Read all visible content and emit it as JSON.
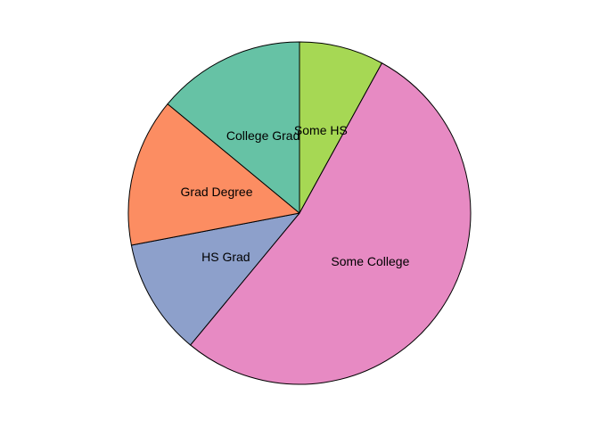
{
  "chart_data": {
    "type": "pie",
    "title": "",
    "start_angle_deg": 90,
    "direction": "clockwise",
    "legend": "none",
    "slices": [
      {
        "label": "Some HS",
        "value": 8,
        "color": "#A6D854"
      },
      {
        "label": "Some College",
        "value": 53,
        "color": "#E78AC3"
      },
      {
        "label": "HS Grad",
        "value": 11,
        "color": "#8DA0CB"
      },
      {
        "label": "Grad Degree",
        "value": 14,
        "color": "#FC8D62"
      },
      {
        "label": "College Grad",
        "value": 14,
        "color": "#66C2A5"
      }
    ]
  }
}
